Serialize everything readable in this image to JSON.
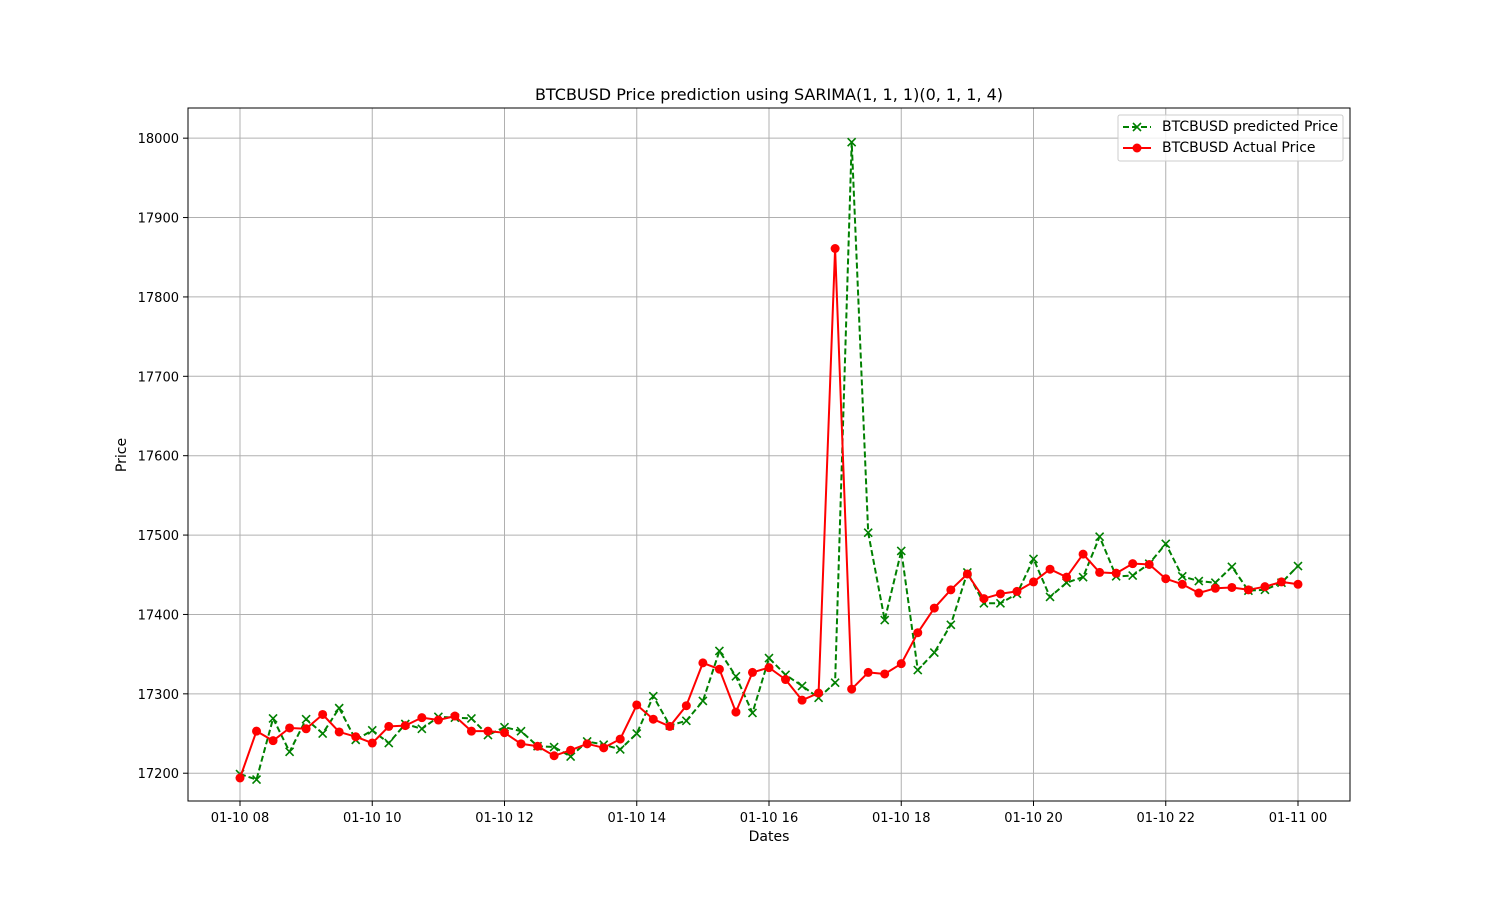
{
  "chart_data": {
    "type": "line",
    "title": "BTCBUSD Price prediction using SARIMA(1, 1, 1)(0, 1, 1, 4)",
    "xlabel": "Dates",
    "ylabel": "Price",
    "x_range": [
      "01-10 08:00",
      "01-11 00:00"
    ],
    "x_interval_minutes": 15,
    "x_ticks": [
      "01-10 08",
      "01-10 10",
      "01-10 12",
      "01-10 14",
      "01-10 16",
      "01-10 18",
      "01-10 20",
      "01-10 22",
      "01-11 00"
    ],
    "ylim": [
      17165,
      18038
    ],
    "y_ticks": [
      17200,
      17300,
      17400,
      17500,
      17600,
      17700,
      17800,
      17900,
      18000
    ],
    "grid": true,
    "legend_position": "top-right",
    "series": [
      {
        "name": "BTCBUSD predicted Price",
        "color": "#008000",
        "style": "dashed",
        "marker": "x",
        "values": [
          17199,
          17192,
          17269,
          17227,
          17268,
          17250,
          17282,
          17242,
          17254,
          17238,
          17262,
          17256,
          17271,
          17270,
          17269,
          17248,
          17258,
          17253,
          17234,
          17233,
          17221,
          17240,
          17236,
          17230,
          17250,
          17297,
          17260,
          17266,
          17291,
          17354,
          17322,
          17276,
          17345,
          17324,
          17310,
          17295,
          17314,
          17995,
          17503,
          17393,
          17480,
          17330,
          17352,
          17387,
          17453,
          17414,
          17414,
          17426,
          17470,
          17422,
          17440,
          17447,
          17498,
          17448,
          17449,
          17464,
          17489,
          17448,
          17442,
          17440,
          17460,
          17430,
          17431,
          17440,
          17461
        ]
      },
      {
        "name": "BTCBUSD Actual Price",
        "color": "#ff0000",
        "style": "solid",
        "marker": "o",
        "values": [
          17194,
          17253,
          17241,
          17257,
          17256,
          17274,
          17252,
          17246,
          17238,
          17259,
          17260,
          17270,
          17267,
          17272,
          17253,
          17253,
          17251,
          17237,
          17234,
          17222,
          17229,
          17237,
          17232,
          17243,
          17286,
          17268,
          17259,
          17285,
          17339,
          17331,
          17277,
          17327,
          17333,
          17318,
          17292,
          17301,
          17861,
          17306,
          17327,
          17325,
          17338,
          17377,
          17408,
          17431,
          17451,
          17420,
          17426,
          17429,
          17441,
          17457,
          17447,
          17476,
          17453,
          17452,
          17464,
          17463,
          17445,
          17438,
          17427,
          17433,
          17434,
          17431,
          17435,
          17441,
          17438
        ]
      }
    ]
  }
}
